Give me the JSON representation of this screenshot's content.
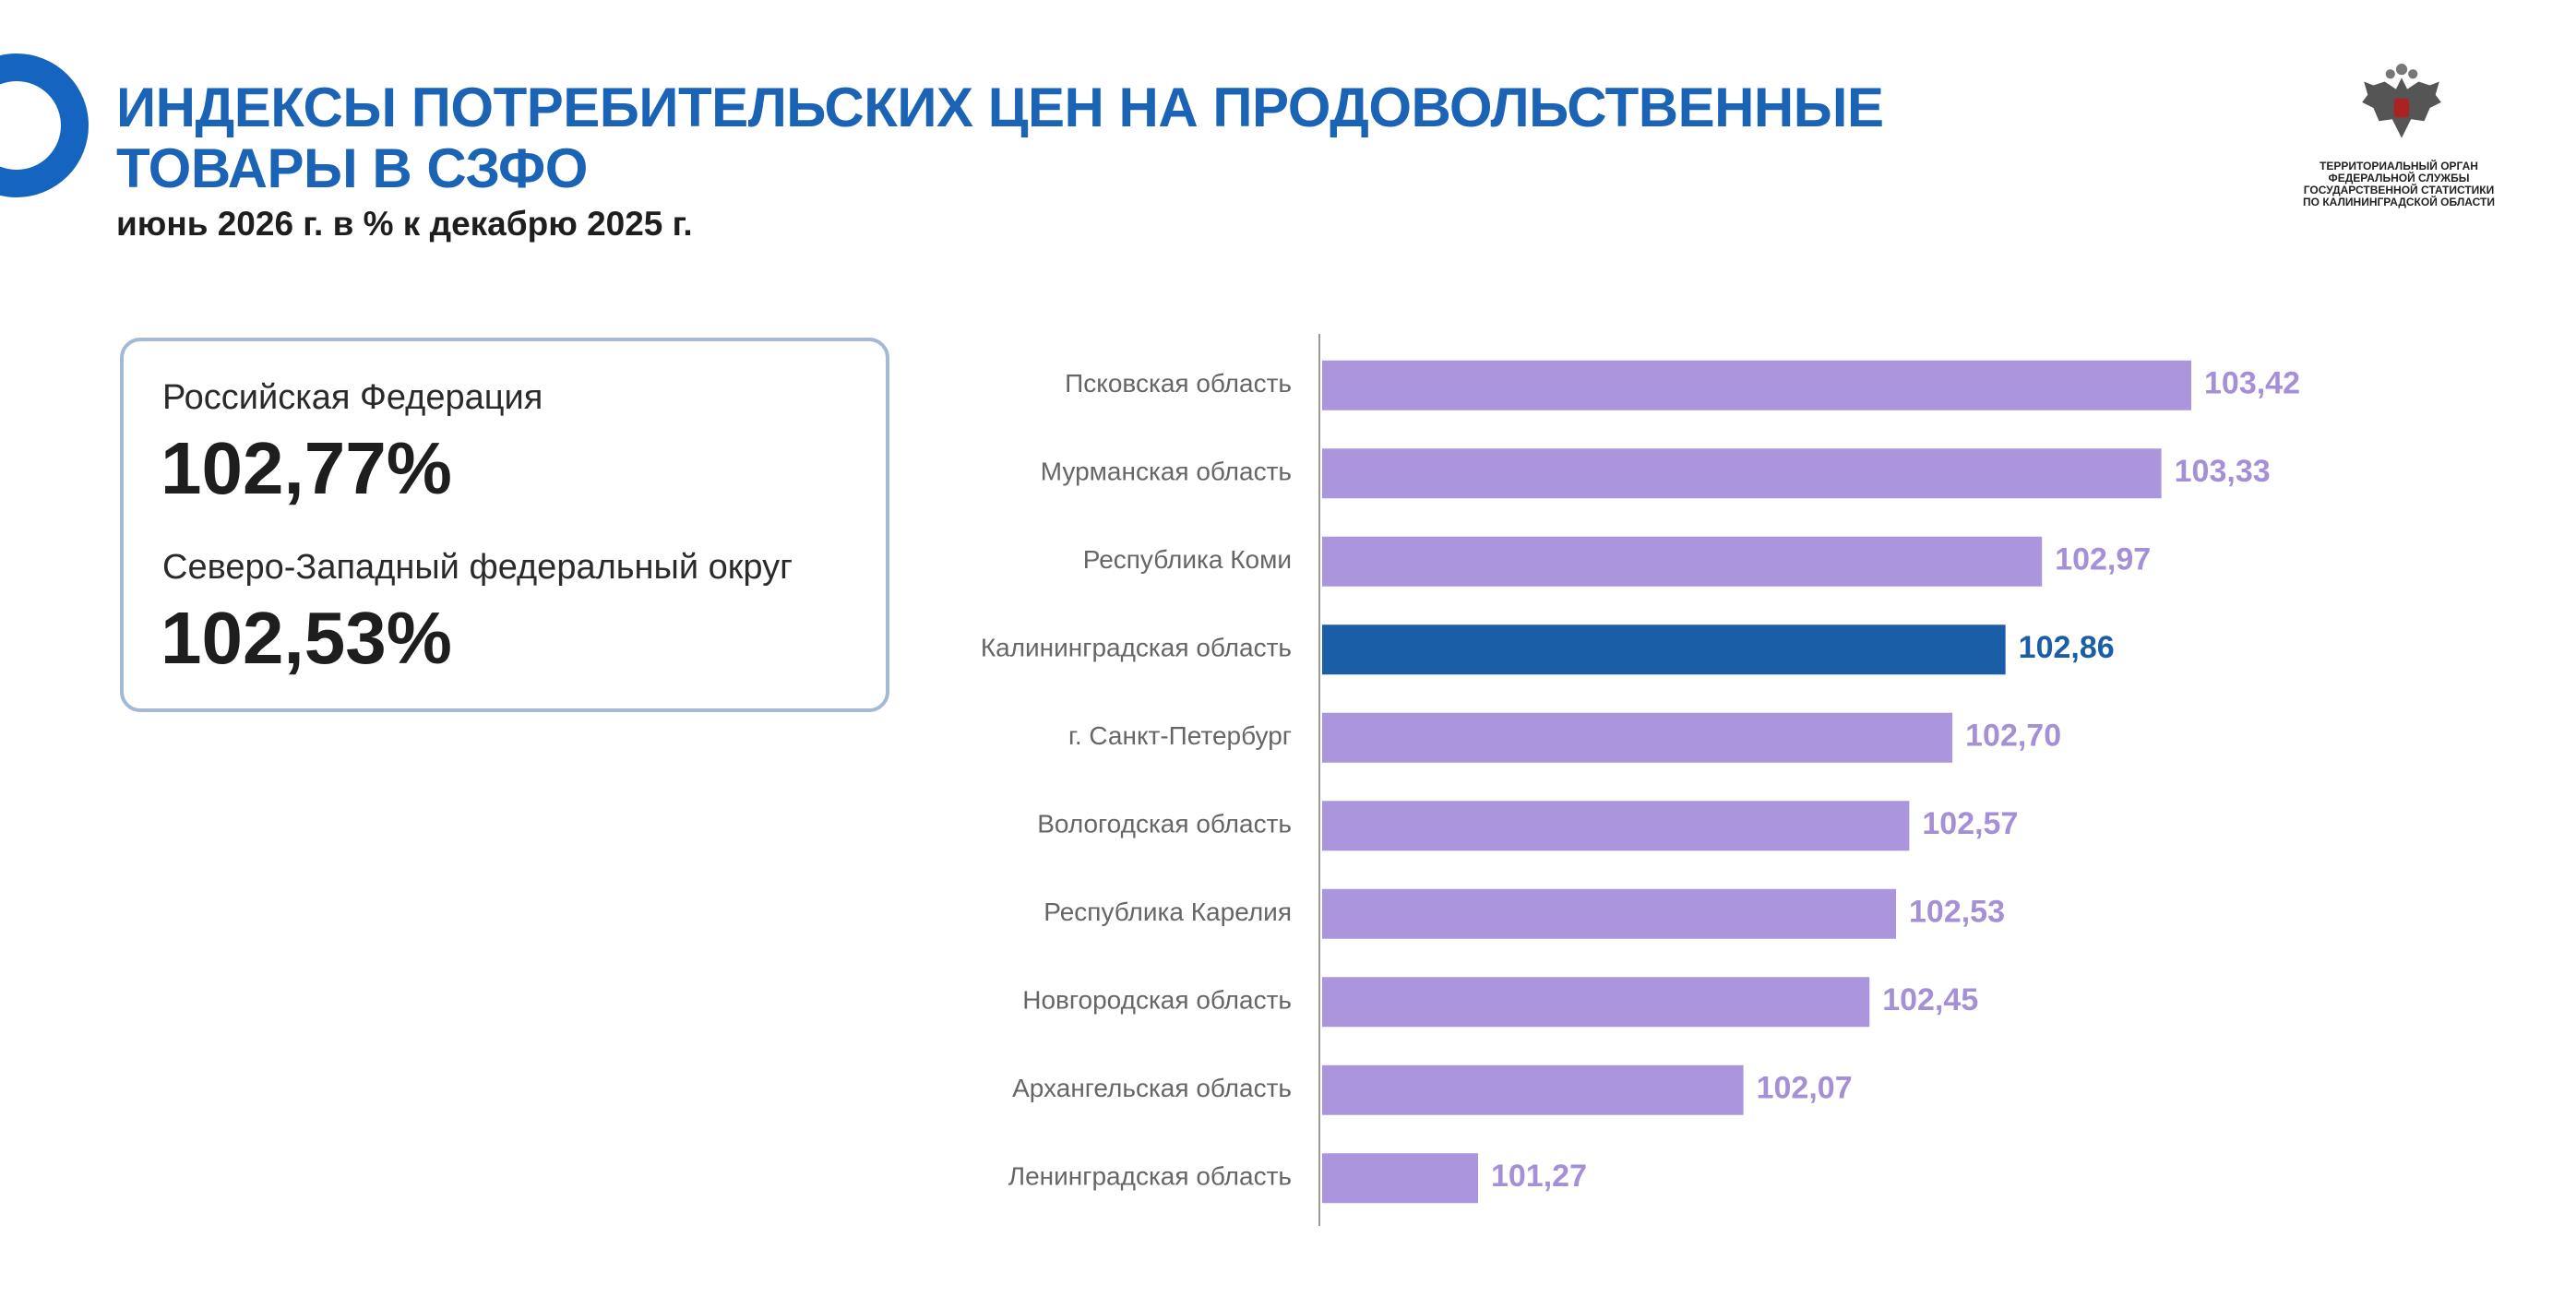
{
  "header": {
    "title_line1": "ИНДЕКСЫ ПОТРЕБИТЕЛЬСКИХ ЦЕН НА ПРОДОВОЛЬСТВЕННЫЕ",
    "title_line2": "ТОВАРЫ В СЗФО",
    "subtitle": "июнь 2026 г. в % к декабрю 2025 г."
  },
  "logo": {
    "icon": "double-headed-eagle-emblem",
    "org_lines": [
      "ТЕРРИТОРИАЛЬНЫЙ ОРГАН",
      "ФЕДЕРАЛЬНОЙ СЛУЖБЫ",
      "ГОСУДАРСТВЕННОЙ СТАТИСТИКИ",
      "ПО КАЛИНИНГРАДСКОЙ ОБЛАСТИ"
    ]
  },
  "summary": {
    "rf_label": "Российская Федерация",
    "rf_value": "102,77%",
    "szfo_label": "Северо-Западный федеральный округ",
    "szfo_value": "102,53%"
  },
  "colors": {
    "accent": "#1a63b5",
    "bar": "#ab95dd",
    "bar_highlight": "#1a5ea8",
    "value_label": "#a58fd6",
    "value_label_highlight": "#1a5ea8"
  },
  "chart_data": {
    "type": "bar",
    "orientation": "horizontal",
    "categories": [
      "Псковская область",
      "Мурманская область",
      "Республика Коми",
      "Калининградская область",
      "г. Санкт-Петербург",
      "Вологодская область",
      "Республика Карелия",
      "Новгородская область",
      "Архангельская область",
      "Ленинградская область"
    ],
    "values": [
      103.42,
      103.33,
      102.97,
      102.86,
      102.7,
      102.57,
      102.53,
      102.45,
      102.07,
      101.27
    ],
    "value_labels": [
      "103,42",
      "103,33",
      "102,97",
      "102,86",
      "102,70",
      "102,57",
      "102,53",
      "102,45",
      "102,07",
      "101,27"
    ],
    "highlight": "Калининградская область",
    "xlim": [
      100.8,
      103.42
    ]
  }
}
